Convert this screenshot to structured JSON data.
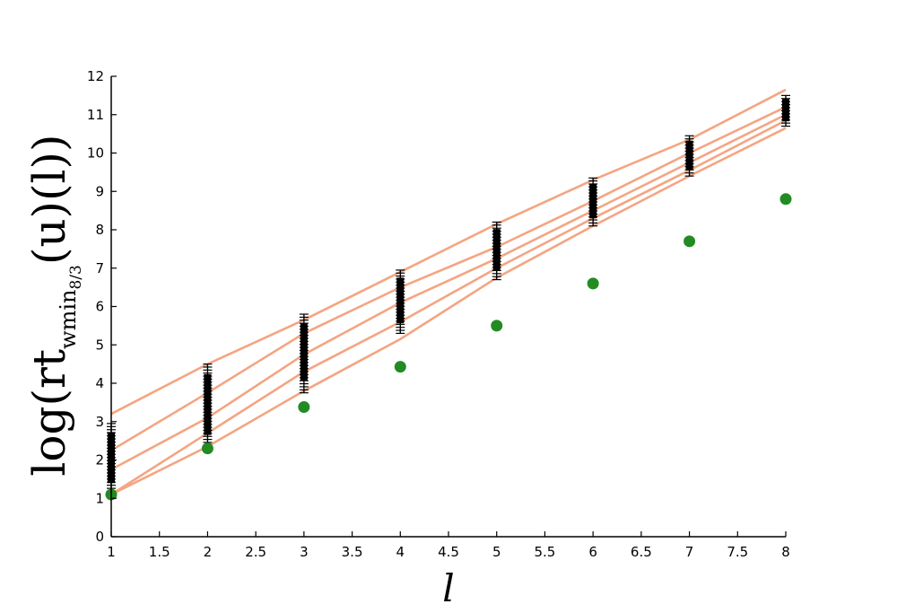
{
  "chart_data": {
    "type": "line",
    "xlabel": "l",
    "ylabel": {
      "prefix": "log(rt",
      "subscript": "wmin",
      "subsub": "8/3",
      "suffix": "(u)(l))"
    },
    "xlim": [
      1,
      8
    ],
    "ylim": [
      0,
      12
    ],
    "x_ticks": [
      "1",
      "1.5",
      "2",
      "2.5",
      "3",
      "3.5",
      "4",
      "4.5",
      "5",
      "5.5",
      "6",
      "6.5",
      "7",
      "7.5",
      "8"
    ],
    "y_ticks": [
      "0",
      "1",
      "2",
      "3",
      "4",
      "5",
      "6",
      "7",
      "8",
      "9",
      "10",
      "11",
      "12"
    ],
    "grid": false,
    "colors": {
      "lines": "#f4a582",
      "markers": "#000000",
      "points": "#228b22"
    },
    "series": [
      {
        "kind": "line",
        "x": [
          1,
          2,
          3,
          4,
          5,
          6,
          7,
          8
        ],
        "values": [
          3.2,
          4.5,
          5.65,
          6.9,
          8.15,
          9.3,
          10.35,
          11.65
        ]
      },
      {
        "kind": "line",
        "x": [
          1,
          2,
          3,
          4,
          5,
          6,
          7,
          8
        ],
        "values": [
          2.25,
          3.75,
          5.3,
          6.5,
          7.55,
          8.75,
          10.0,
          11.2
        ]
      },
      {
        "kind": "line",
        "x": [
          1,
          2,
          3,
          4,
          5,
          6,
          7,
          8
        ],
        "values": [
          1.75,
          3.1,
          4.75,
          6.1,
          7.25,
          8.5,
          9.75,
          11.0
        ]
      },
      {
        "kind": "line",
        "x": [
          1,
          2,
          3,
          4,
          5,
          6,
          7,
          8
        ],
        "values": [
          1.1,
          2.7,
          4.3,
          5.6,
          7.0,
          8.3,
          9.55,
          10.85
        ]
      },
      {
        "kind": "line",
        "x": [
          1,
          2,
          3,
          4,
          5,
          6,
          7,
          8
        ],
        "values": [
          1.1,
          2.35,
          3.8,
          5.15,
          6.75,
          8.1,
          9.4,
          10.65
        ]
      },
      {
        "kind": "points",
        "x": [
          1,
          2,
          3,
          4,
          5,
          6,
          7,
          8
        ],
        "values": [
          1.1,
          2.3,
          3.38,
          4.43,
          5.5,
          6.6,
          7.7,
          8.8
        ]
      }
    ],
    "marker_ranges": [
      {
        "x": 1,
        "low": 1.1,
        "high": 2.95
      },
      {
        "x": 2,
        "low": 2.3,
        "high": 4.5
      },
      {
        "x": 3,
        "low": 3.75,
        "high": 5.8
      },
      {
        "x": 4,
        "low": 5.3,
        "high": 6.95
      },
      {
        "x": 5,
        "low": 6.7,
        "high": 8.2
      },
      {
        "x": 6,
        "low": 8.1,
        "high": 9.35
      },
      {
        "x": 7,
        "low": 9.4,
        "high": 10.45
      },
      {
        "x": 8,
        "low": 10.7,
        "high": 11.5
      }
    ]
  }
}
